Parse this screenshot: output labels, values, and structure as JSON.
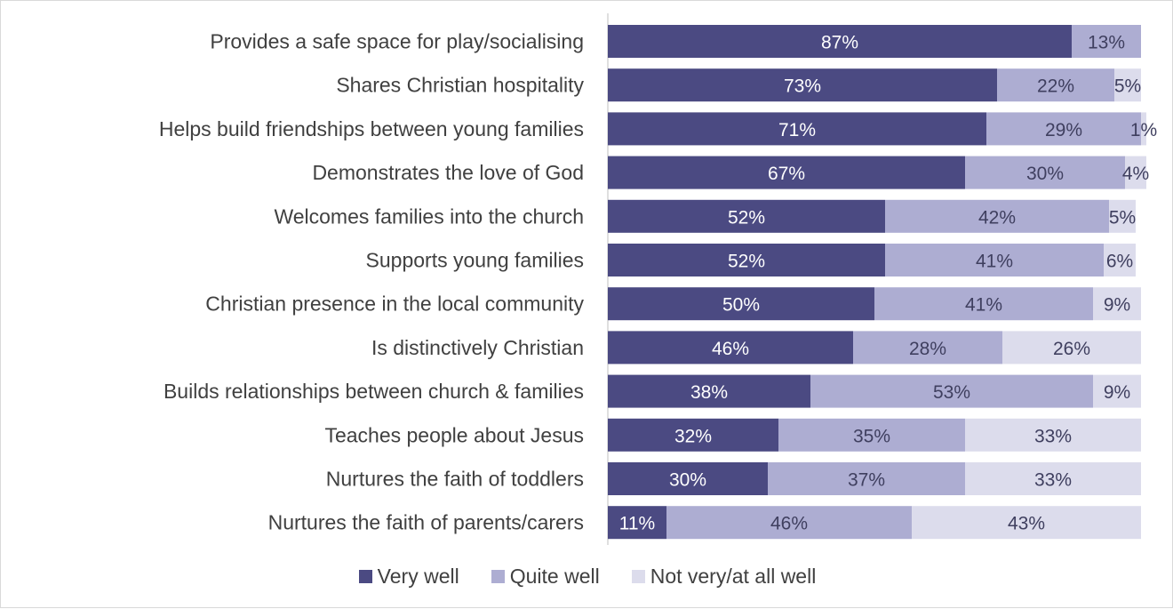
{
  "chart_data": {
    "type": "bar",
    "orientation": "horizontal",
    "stacked": true,
    "categories": [
      "Provides a safe space for play/socialising",
      "Shares Christian hospitality",
      "Helps build friendships between young families",
      "Demonstrates the love of God",
      "Welcomes families into the church",
      "Supports young families",
      "Christian presence in the local community",
      "Is distinctively Christian",
      "Builds relationships between church & families",
      "Teaches people about Jesus",
      "Nurtures the faith of toddlers",
      "Nurtures the faith of parents/carers"
    ],
    "series": [
      {
        "name": "Very well",
        "color": "#4b4a82",
        "label_color": "#ffffff",
        "values": [
          87,
          73,
          71,
          67,
          52,
          52,
          50,
          46,
          38,
          32,
          30,
          11
        ]
      },
      {
        "name": "Quite well",
        "color": "#adadd2",
        "label_color": "#3f3f5f",
        "values": [
          13,
          22,
          29,
          30,
          42,
          41,
          41,
          28,
          53,
          35,
          37,
          46
        ]
      },
      {
        "name": "Not very/at all well",
        "color": "#dcdcec",
        "label_color": "#3f3f5f",
        "values": [
          0,
          5,
          1,
          4,
          5,
          6,
          9,
          26,
          9,
          33,
          33,
          43
        ]
      }
    ],
    "data_labels": [
      [
        "87%",
        "13%",
        ""
      ],
      [
        "73%",
        "22%",
        "5%"
      ],
      [
        "71%",
        "29%",
        "1%"
      ],
      [
        "67%",
        "30%",
        "4%"
      ],
      [
        "52%",
        "42%",
        "5%"
      ],
      [
        "52%",
        "41%",
        "6%"
      ],
      [
        "50%",
        "41%",
        "9%"
      ],
      [
        "46%",
        "28%",
        "26%"
      ],
      [
        "38%",
        "53%",
        "9%"
      ],
      [
        "32%",
        "35%",
        "33%"
      ],
      [
        "30%",
        "37%",
        "33%"
      ],
      [
        "11%",
        "46%",
        "43%"
      ]
    ],
    "xlim": [
      0,
      100
    ],
    "grid": false,
    "legend_position": "bottom",
    "title": "",
    "xlabel": "",
    "ylabel": ""
  }
}
